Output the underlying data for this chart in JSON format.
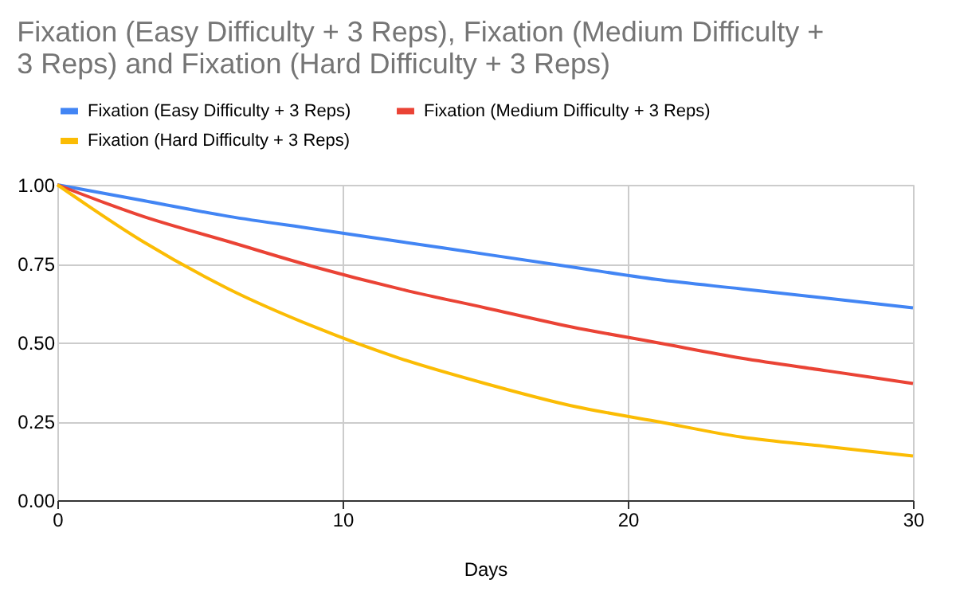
{
  "chart_data": {
    "type": "line",
    "title": "Fixation (Easy Difficulty + 3 Reps), Fixation (Medium Difficulty + 3 Reps) and Fixation (Hard Difficulty + 3 Reps)",
    "xlabel": "Days",
    "x": [
      0,
      3,
      6,
      9,
      12,
      15,
      18,
      21,
      24,
      27,
      30
    ],
    "series": [
      {
        "name": "Fixation (Easy Difficulty + 3 Reps)",
        "color": "#4285f4",
        "values": [
          1.0,
          0.95,
          0.9,
          0.86,
          0.82,
          0.78,
          0.74,
          0.7,
          0.67,
          0.64,
          0.61
        ]
      },
      {
        "name": "Fixation (Medium Difficulty + 3 Reps)",
        "color": "#ea4335",
        "values": [
          1.0,
          0.9,
          0.82,
          0.74,
          0.67,
          0.61,
          0.55,
          0.5,
          0.45,
          0.41,
          0.37
        ]
      },
      {
        "name": "Fixation (Hard Difficulty + 3 Reps)",
        "color": "#fbbc04",
        "values": [
          1.0,
          0.82,
          0.67,
          0.55,
          0.45,
          0.37,
          0.3,
          0.25,
          0.2,
          0.17,
          0.14
        ]
      }
    ],
    "xlim": [
      0,
      30
    ],
    "xticks": [
      0,
      10,
      20,
      30
    ],
    "ylim": [
      0,
      1
    ],
    "yticks": [
      {
        "value": 0,
        "label": "0.00"
      },
      {
        "value": 0.25,
        "label": "0.25"
      },
      {
        "value": 0.5,
        "label": "0.50"
      },
      {
        "value": 0.75,
        "label": "0.75"
      },
      {
        "value": 1,
        "label": "1.00"
      }
    ],
    "grid": true,
    "legend": "top",
    "marker": "none",
    "line_style": "solid"
  }
}
